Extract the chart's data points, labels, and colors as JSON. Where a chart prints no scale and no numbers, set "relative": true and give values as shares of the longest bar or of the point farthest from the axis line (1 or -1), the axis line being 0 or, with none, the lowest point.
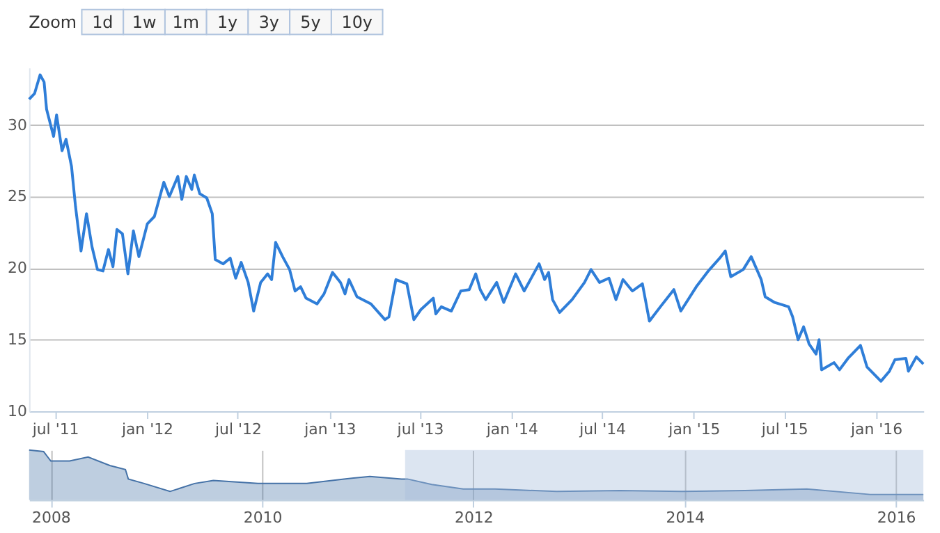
{
  "chart_data": [
    {
      "type": "line",
      "annotations": [
        "Zoom",
        "1d",
        "1w",
        "1m",
        "1y",
        "3y",
        "5y",
        "10y"
      ],
      "x": [
        "2011-05-10",
        "2011-05-21",
        "2011-06-01",
        "2011-06-09",
        "2011-06-14",
        "2011-06-28",
        "2011-07-04",
        "2011-07-15",
        "2011-07-23",
        "2011-08-03",
        "2011-08-11",
        "2011-08-22",
        "2011-09-02",
        "2011-09-13",
        "2011-09-24",
        "2011-10-05",
        "2011-10-16",
        "2011-10-25",
        "2011-11-02",
        "2011-11-13",
        "2011-11-24",
        "2011-12-05",
        "2011-12-16",
        "2012-01-02",
        "2012-01-16",
        "2012-02-04",
        "2012-02-15",
        "2012-03-03",
        "2012-03-11",
        "2012-03-20",
        "2012-03-31",
        "2012-04-05",
        "2012-04-16",
        "2012-04-30",
        "2012-05-11",
        "2012-05-17",
        "2012-06-02",
        "2012-06-16",
        "2012-06-27",
        "2012-07-08",
        "2012-07-22",
        "2012-08-02",
        "2012-08-16",
        "2012-08-30",
        "2012-09-07",
        "2012-09-15",
        "2012-09-29",
        "2012-10-13",
        "2012-10-24",
        "2012-11-04",
        "2012-11-15",
        "2012-12-07",
        "2012-12-21",
        "2013-01-07",
        "2013-01-23",
        "2013-02-01",
        "2013-02-09",
        "2013-02-25",
        "2013-03-25",
        "2013-04-22",
        "2013-04-30",
        "2013-05-14",
        "2013-06-05",
        "2013-06-19",
        "2013-07-03",
        "2013-07-28",
        "2013-08-02",
        "2013-08-13",
        "2013-09-02",
        "2013-09-21",
        "2013-10-08",
        "2013-10-21",
        "2013-10-30",
        "2013-11-10",
        "2013-12-02",
        "2013-12-16",
        "2014-01-09",
        "2014-01-26",
        "2014-02-25",
        "2014-03-08",
        "2014-03-16",
        "2014-03-24",
        "2014-04-07",
        "2014-05-02",
        "2014-05-27",
        "2014-06-09",
        "2014-06-26",
        "2014-07-15",
        "2014-07-29",
        "2014-08-12",
        "2014-08-31",
        "2014-09-20",
        "2014-10-04",
        "2014-10-26",
        "2014-11-22",
        "2014-12-06",
        "2015-01-06",
        "2015-01-30",
        "2015-02-22",
        "2015-03-05",
        "2015-03-16",
        "2015-04-10",
        "2015-04-26",
        "2015-05-16",
        "2015-05-24",
        "2015-06-12",
        "2015-07-10",
        "2015-07-18",
        "2015-07-29",
        "2015-08-09",
        "2015-08-20",
        "2015-09-03",
        "2015-09-09",
        "2015-09-14",
        "2015-10-09",
        "2015-10-20",
        "2015-11-06",
        "2015-12-01",
        "2015-12-14",
        "2016-01-11",
        "2016-01-28",
        "2016-02-08",
        "2016-03-01",
        "2016-03-06",
        "2016-03-22",
        "2016-04-05"
      ],
      "series": [
        {
          "color": "#2f7ed8",
          "values": [
            31.8,
            32.2,
            33.5,
            33.0,
            31.1,
            29.2,
            30.7,
            28.2,
            29.0,
            27.1,
            24.3,
            21.2,
            23.8,
            21.5,
            19.9,
            19.8,
            21.3,
            20.1,
            22.7,
            22.4,
            19.6,
            22.6,
            20.8,
            23.1,
            23.6,
            26.0,
            25.0,
            26.4,
            24.8,
            26.4,
            25.5,
            26.5,
            25.2,
            24.9,
            23.8,
            20.6,
            20.3,
            20.7,
            19.3,
            20.4,
            19.0,
            17.0,
            19.0,
            19.6,
            19.2,
            21.8,
            20.8,
            19.9,
            18.4,
            18.7,
            17.9,
            17.5,
            18.2,
            19.7,
            19.0,
            18.2,
            19.2,
            18.0,
            17.5,
            16.4,
            16.6,
            19.2,
            18.9,
            16.4,
            17.1,
            17.9,
            16.8,
            17.3,
            17.0,
            18.4,
            18.5,
            19.6,
            18.5,
            17.8,
            19.0,
            17.6,
            19.6,
            18.4,
            20.3,
            19.2,
            19.7,
            17.8,
            16.9,
            17.8,
            19.0,
            19.9,
            19.0,
            19.3,
            17.8,
            19.2,
            18.4,
            18.9,
            16.3,
            17.3,
            18.5,
            17.0,
            18.7,
            19.8,
            20.7,
            21.2,
            19.4,
            19.9,
            20.8,
            19.2,
            18.0,
            17.6,
            17.3,
            16.6,
            15.0,
            15.9,
            14.7,
            14.0,
            15.0,
            12.9,
            13.4,
            12.9,
            13.7,
            14.6,
            13.1,
            12.1,
            12.8,
            13.6,
            13.7,
            12.8,
            13.8,
            13.3
          ]
        }
      ],
      "xlim": [
        "2011-05-10",
        "2016-04-05"
      ],
      "xticks": [
        {
          "value": "2011-07-01",
          "label": "jul '11"
        },
        {
          "value": "2012-01-01",
          "label": "jan '12"
        },
        {
          "value": "2012-07-01",
          "label": "jul '12"
        },
        {
          "value": "2013-01-01",
          "label": "jan '13"
        },
        {
          "value": "2013-07-01",
          "label": "jul '13"
        },
        {
          "value": "2014-01-01",
          "label": "jan '14"
        },
        {
          "value": "2014-07-01",
          "label": "jul '14"
        },
        {
          "value": "2015-01-01",
          "label": "jan '15"
        },
        {
          "value": "2015-07-01",
          "label": "jul '15"
        },
        {
          "value": "2016-01-01",
          "label": "jan '16"
        }
      ],
      "ylim": [
        10,
        34
      ],
      "yticks": [
        10,
        15,
        20,
        25,
        30
      ],
      "grid": "y",
      "line_style": "solid",
      "marker": "none"
    },
    {
      "type": "area",
      "relative": true,
      "x": [
        "2007-10-18",
        "2007-12-07",
        "2008-01-01",
        "2008-03-06",
        "2008-05-09",
        "2008-07-23",
        "2008-09-15",
        "2008-09-25",
        "2008-11-19",
        "2009-02-16",
        "2009-05-12",
        "2009-07-16",
        "2009-12-17",
        "2010-06-04",
        "2010-10-11",
        "2011-01-08",
        "2011-04-28",
        "2011-05-18",
        "2011-08-10",
        "2011-11-27",
        "2012-03-16",
        "2012-10-15",
        "2013-05-22",
        "2013-12-22",
        "2014-07-28",
        "2015-02-27",
        "2015-10-04",
        "2016-04-05"
      ],
      "series": [
        {
          "color": "#4572a7",
          "values": [
            1.0,
            0.97,
            0.78,
            0.78,
            0.86,
            0.69,
            0.61,
            0.42,
            0.33,
            0.17,
            0.33,
            0.39,
            0.33,
            0.33,
            0.42,
            0.47,
            0.42,
            0.42,
            0.31,
            0.22,
            0.22,
            0.17,
            0.19,
            0.17,
            0.19,
            0.22,
            0.11,
            0.11
          ]
        }
      ],
      "xlim": [
        "2007-10-18",
        "2016-04-05"
      ],
      "xticks": [
        {
          "value": "2008-01-01",
          "label": "2008"
        },
        {
          "value": "2010-01-01",
          "label": "2010"
        },
        {
          "value": "2012-01-01",
          "label": "2012"
        },
        {
          "value": "2014-01-01",
          "label": "2014"
        },
        {
          "value": "2016-01-01",
          "label": "2016"
        }
      ],
      "bands": [
        {
          "axis": "x",
          "from": "2011-05-10",
          "to": "2016-04-05",
          "color": "#a8bfdc"
        }
      ],
      "grid": "x"
    }
  ]
}
